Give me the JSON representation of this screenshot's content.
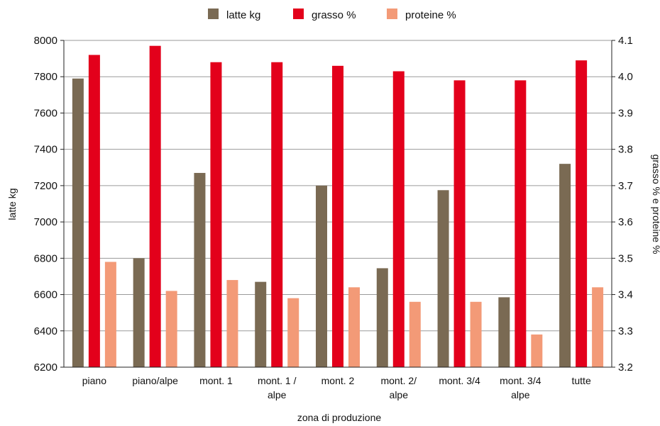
{
  "chart_data": {
    "type": "bar",
    "categories": [
      [
        "piano"
      ],
      [
        "piano/alpe"
      ],
      [
        "mont. 1"
      ],
      [
        "mont. 1 /",
        "alpe"
      ],
      [
        "mont. 2"
      ],
      [
        "mont. 2/",
        "alpe"
      ],
      [
        "mont. 3/4"
      ],
      [
        "mont. 3/4",
        "alpe"
      ],
      [
        "tutte"
      ]
    ],
    "series": [
      {
        "name": "latte kg",
        "axis": "left",
        "color": "#7a6a53",
        "values": [
          7790,
          6800,
          7270,
          6670,
          7200,
          6745,
          7175,
          6585,
          7320
        ]
      },
      {
        "name": "grasso %",
        "axis": "right",
        "color": "#e3001b",
        "values": [
          4.06,
          4.085,
          4.04,
          4.04,
          4.03,
          4.015,
          3.99,
          3.99,
          4.045
        ]
      },
      {
        "name": "proteine %",
        "axis": "right",
        "color": "#f39a77",
        "values": [
          3.49,
          3.41,
          3.44,
          3.39,
          3.42,
          3.38,
          3.38,
          3.29,
          3.42
        ]
      }
    ],
    "xlabel": "zona di produzione",
    "ylabel_left": "latte kg",
    "ylabel_right": "grasso % e proteine %",
    "ylim_left": [
      6200,
      8000
    ],
    "yticks_left": [
      6200,
      6400,
      6600,
      6800,
      7000,
      7200,
      7400,
      7600,
      7800,
      8000
    ],
    "ylim_right": [
      3.2,
      4.1
    ],
    "yticks_right": [
      "3.2",
      "3.3",
      "3.4",
      "3.5",
      "3.6",
      "3.7",
      "3.8",
      "3.9",
      "4.0",
      "4.1"
    ],
    "grid": true,
    "legend_position": "top-center"
  }
}
